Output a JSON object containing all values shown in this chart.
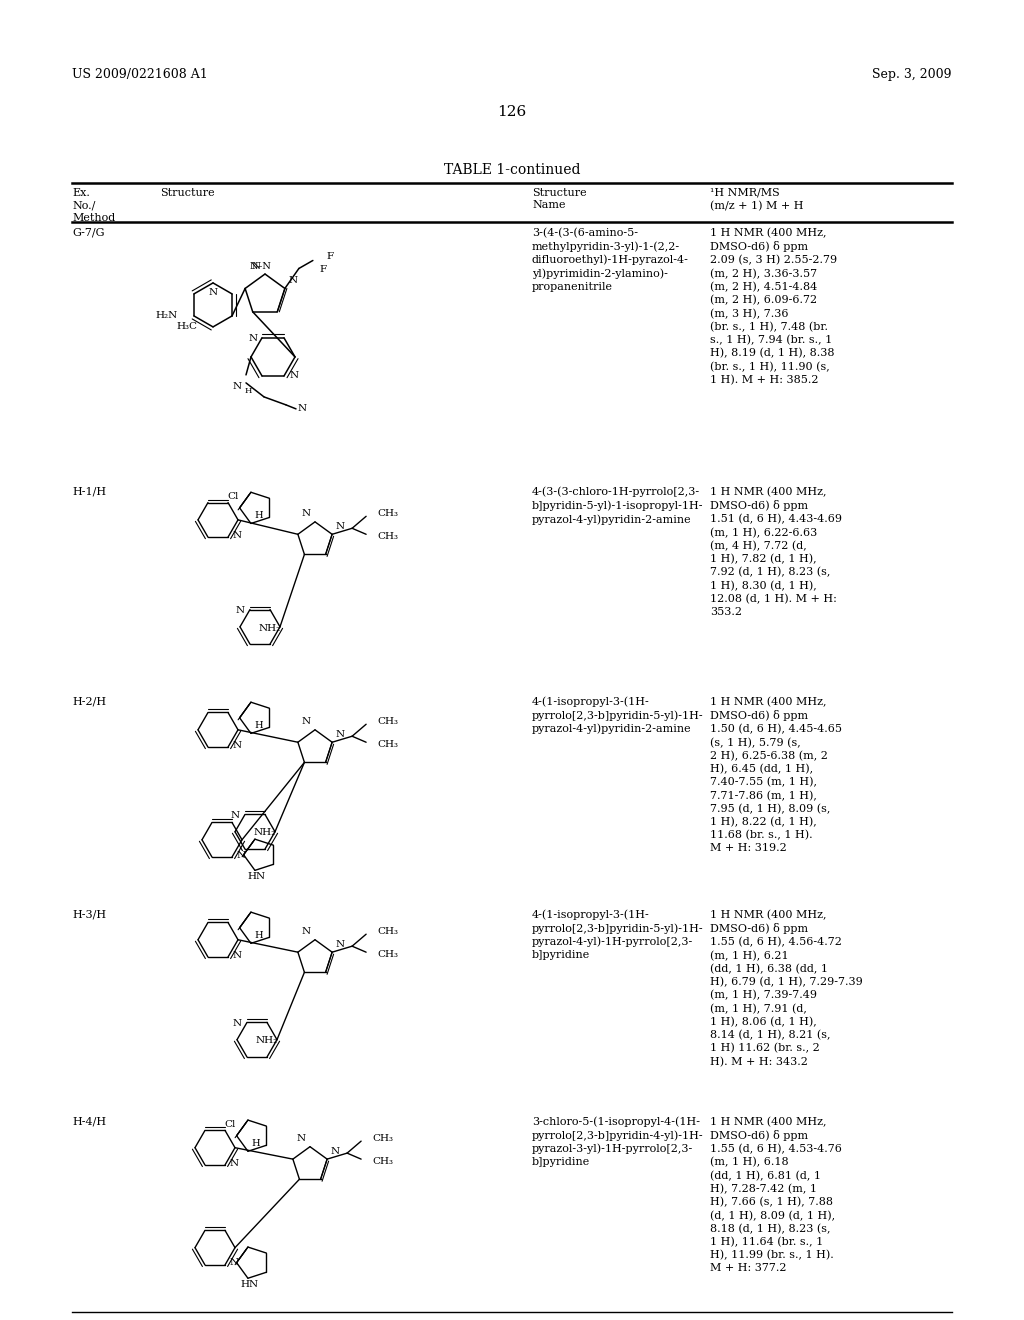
{
  "bg_color": "#ffffff",
  "header_left": "US 2009/0221608 A1",
  "header_right": "Sep. 3, 2009",
  "page_number": "126",
  "table_title": "TABLE 1-continued",
  "rows": [
    {
      "id": "G-7/G",
      "name": "3-(4-(3-(6-amino-5-\nmethylpyridin-3-yl)-1-(2,2-\ndifluoroethyl)-1H-pyrazol-4-\nyl)pyrimidin-2-ylamino)-\npropanenitrile",
      "nmr": "1 H NMR (400 MHz,\nDMSO-d6) δ ppm\n2.09 (s, 3 H) 2.55-2.79\n(m, 2 H), 3.36-3.57\n(m, 2 H), 4.51-4.84\n(m, 2 H), 6.09-6.72\n(m, 3 H), 7.36\n(br. s., 1 H), 7.48 (br.\ns., 1 H), 7.94 (br. s., 1\nH), 8.19 (d, 1 H), 8.38\n(br. s., 1 H), 11.90 (s,\n1 H). M + H: 385.2"
    },
    {
      "id": "H-1/H",
      "name": "4-(3-(3-chloro-1H-pyrrolo[2,3-\nb]pyridin-5-yl)-1-isopropyl-1H-\npyrazol-4-yl)pyridin-2-amine",
      "nmr": "1 H NMR (400 MHz,\nDMSO-d6) δ ppm\n1.51 (d, 6 H), 4.43-4.69\n(m, 1 H), 6.22-6.63\n(m, 4 H), 7.72 (d,\n1 H), 7.82 (d, 1 H),\n7.92 (d, 1 H), 8.23 (s,\n1 H), 8.30 (d, 1 H),\n12.08 (d, 1 H). M + H:\n353.2"
    },
    {
      "id": "H-2/H",
      "name": "4-(1-isopropyl-3-(1H-\npyrrolo[2,3-b]pyridin-5-yl)-1H-\npyrazol-4-yl)pyridin-2-amine",
      "nmr": "1 H NMR (400 MHz,\nDMSO-d6) δ ppm\n1.50 (d, 6 H), 4.45-4.65\n(s, 1 H), 5.79 (s,\n2 H), 6.25-6.38 (m, 2\nH), 6.45 (dd, 1 H),\n7.40-7.55 (m, 1 H),\n7.71-7.86 (m, 1 H),\n7.95 (d, 1 H), 8.09 (s,\n1 H), 8.22 (d, 1 H),\n11.68 (br. s., 1 H).\nM + H: 319.2"
    },
    {
      "id": "H-3/H",
      "name": "4-(1-isopropyl-3-(1H-\npyrrolo[2,3-b]pyridin-5-yl)-1H-\npyrazol-4-yl)-1H-pyrrolo[2,3-\nb]pyridine",
      "nmr": "1 H NMR (400 MHz,\nDMSO-d6) δ ppm\n1.55 (d, 6 H), 4.56-4.72\n(m, 1 H), 6.21\n(dd, 1 H), 6.38 (dd, 1\nH), 6.79 (d, 1 H), 7.29-7.39\n(m, 1 H), 7.39-7.49\n(m, 1 H), 7.91 (d,\n1 H), 8.06 (d, 1 H),\n8.14 (d, 1 H), 8.21 (s,\n1 H) 11.62 (br. s., 2\nH). M + H: 343.2"
    },
    {
      "id": "H-4/H",
      "name": "3-chloro-5-(1-isopropyl-4-(1H-\npyrrolo[2,3-b]pyridin-4-yl)-1H-\npyrazol-3-yl)-1H-pyrrolo[2,3-\nb]pyridine",
      "nmr": "1 H NMR (400 MHz,\nDMSO-d6) δ ppm\n1.55 (d, 6 H), 4.53-4.76\n(m, 1 H), 6.18\n(dd, 1 H), 6.81 (d, 1\nH), 7.28-7.42 (m, 1\nH), 7.66 (s, 1 H), 7.88\n(d, 1 H), 8.09 (d, 1 H),\n8.18 (d, 1 H), 8.23 (s,\n1 H), 11.64 (br. s., 1\nH), 11.99 (br. s., 1 H).\nM + H: 377.2"
    }
  ]
}
